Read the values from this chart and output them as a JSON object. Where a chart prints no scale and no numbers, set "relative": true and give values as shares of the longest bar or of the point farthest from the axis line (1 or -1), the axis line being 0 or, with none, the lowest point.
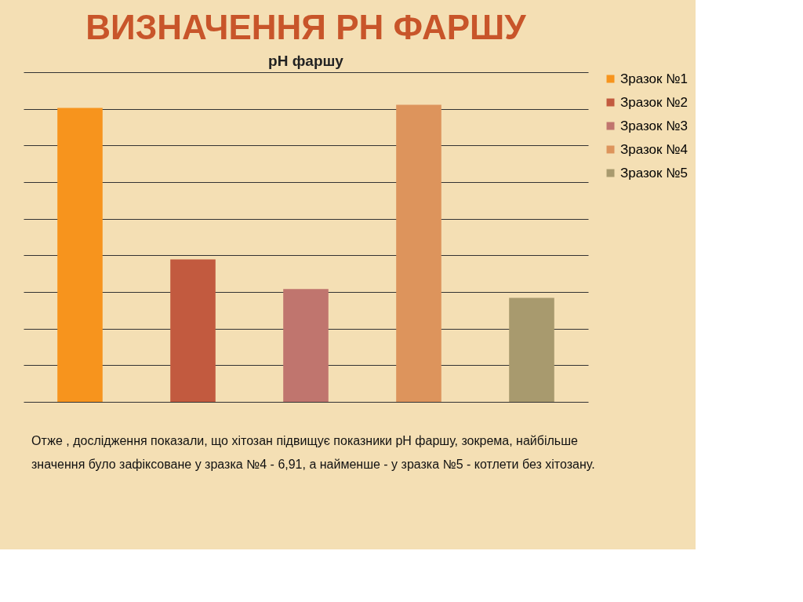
{
  "chart_data": {
    "type": "bar",
    "title": "ВИЗНАЧЕННЯ PH ФАРШУ",
    "subtitle": "pH фаршу",
    "relative": true,
    "grid": "y",
    "legend": "right",
    "stacked": true,
    "categories": [
      null,
      null,
      null,
      null,
      null
    ],
    "series": [
      {
        "name": "Зразок №1",
        "color": "#f7941d",
        "values": [
          0.99,
          null,
          null,
          null,
          null
        ]
      },
      {
        "name": "Зразок №2",
        "color": "#c25a3f",
        "values": [
          null,
          0.48,
          null,
          null,
          null
        ]
      },
      {
        "name": "Зразок №3",
        "color": "#c0756e",
        "values": [
          null,
          null,
          0.38,
          null,
          null
        ]
      },
      {
        "name": "Зразок №4",
        "color": "#dd945c",
        "values": [
          null,
          null,
          null,
          1,
          null
        ]
      },
      {
        "name": "Зразок №5",
        "color": "#a89a6e",
        "values": [
          null,
          null,
          null,
          null,
          0.35
        ]
      }
    ],
    "annotations": [
      "Отже , дослідження показали, що хітозан підвищує показники pH фаршу, зокрема, найбільше значення було зафіксоване у зразка №4 - 6,91, а найменше - у зразка №5 - котлети без хітозану."
    ]
  }
}
